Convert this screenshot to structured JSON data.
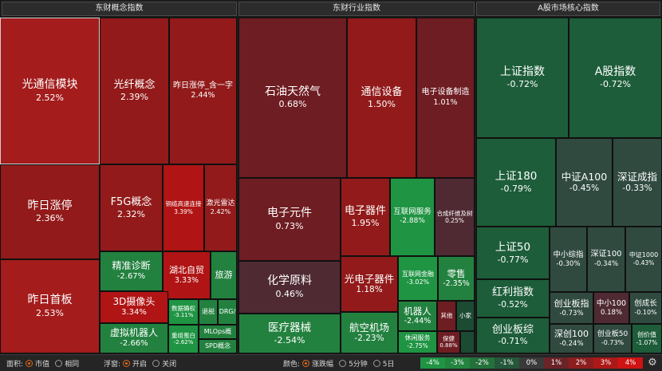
{
  "headers": {
    "concept": "东财概念指数",
    "industry": "东财行业指数",
    "core": "A股市场核心指数"
  },
  "tiles": {
    "c01": {
      "name": "光通信模块",
      "pct": "2.52%"
    },
    "c02": {
      "name": "光纤概念",
      "pct": "2.39%"
    },
    "c03": {
      "name": "昨日涨停_含一字",
      "pct": "2.44%"
    },
    "c04": {
      "name": "昨日涨停",
      "pct": "2.36%"
    },
    "c05": {
      "name": "F5G概念",
      "pct": "2.32%"
    },
    "c06": {
      "name": "铜缆高速连接",
      "pct": "3.39%"
    },
    "c07": {
      "name": "激光雷达",
      "pct": "2.42%"
    },
    "c08": {
      "name": "昨日首板",
      "pct": "2.53%"
    },
    "c09": {
      "name": "精准诊断",
      "pct": "-2.67%"
    },
    "c10": {
      "name": "湖北自贸",
      "pct": "3.33%"
    },
    "c11": {
      "name": "旅游",
      "pct": ""
    },
    "c12": {
      "name": "3D摄像头",
      "pct": "3.34%"
    },
    "c13": {
      "name": "数据确权",
      "pct": "-3.11%"
    },
    "c14": {
      "name": "退税",
      "pct": ""
    },
    "c15": {
      "name": "DRG/",
      "pct": ""
    },
    "c16": {
      "name": "虚拟机器人",
      "pct": "-2.66%"
    },
    "c17": {
      "name": "重组蛋白",
      "pct": "-2.62%"
    },
    "c18": {
      "name": "MLOps概",
      "pct": ""
    },
    "c19": {
      "name": "SPD概念",
      "pct": ""
    },
    "i01": {
      "name": "石油天然气",
      "pct": "0.68%"
    },
    "i02": {
      "name": "通信设备",
      "pct": "1.50%"
    },
    "i03": {
      "name": "电子设备制造",
      "pct": "1.01%"
    },
    "i04": {
      "name": "电子元件",
      "pct": "0.73%"
    },
    "i05": {
      "name": "电子器件",
      "pct": "1.95%"
    },
    "i06": {
      "name": "互联网服务",
      "pct": "-2.88%"
    },
    "i07": {
      "name": "合成纤维及树",
      "pct": "0.25%"
    },
    "i08": {
      "name": "化学原料",
      "pct": "0.46%"
    },
    "i09": {
      "name": "光电子器件",
      "pct": "1.18%"
    },
    "i10": {
      "name": "互联网金融",
      "pct": "-3.02%"
    },
    "i11": {
      "name": "零售",
      "pct": "-2.35%"
    },
    "i12": {
      "name": "机器人",
      "pct": "-2.44%"
    },
    "i13": {
      "name": "其他",
      "pct": ""
    },
    "i14": {
      "name": "小家",
      "pct": ""
    },
    "i15": {
      "name": "医疗器械",
      "pct": "-2.54%"
    },
    "i16": {
      "name": "航空机场",
      "pct": "-2.23%"
    },
    "i17": {
      "name": "休闲服务",
      "pct": "-2.75%"
    },
    "i18": {
      "name": "保健",
      "pct": "0.88%"
    },
    "m01": {
      "name": "上证指数",
      "pct": "-0.72%"
    },
    "m02": {
      "name": "A股指数",
      "pct": "-0.72%"
    },
    "m03": {
      "name": "上证180",
      "pct": "-0.79%"
    },
    "m04": {
      "name": "中证A100",
      "pct": "-0.45%"
    },
    "m05": {
      "name": "深证成指",
      "pct": "-0.33%"
    },
    "m06": {
      "name": "上证50",
      "pct": "-0.77%"
    },
    "m07": {
      "name": "中小综指",
      "pct": "-0.30%"
    },
    "m08": {
      "name": "深证100",
      "pct": "-0.34%"
    },
    "m09": {
      "name": "中证1000",
      "pct": "-0.43%"
    },
    "m10": {
      "name": "红利指数",
      "pct": "-0.52%"
    },
    "m11": {
      "name": "创业板指",
      "pct": "-0.73%"
    },
    "m12": {
      "name": "中小100",
      "pct": "0.18%"
    },
    "m13": {
      "name": "创成长",
      "pct": "-0.10%"
    },
    "m14": {
      "name": "创业板综",
      "pct": "-0.71%"
    },
    "m15": {
      "name": "深创100",
      "pct": "-0.24%"
    },
    "m16": {
      "name": "创业板50",
      "pct": "-0.73%"
    },
    "m17": {
      "name": "创价值",
      "pct": "-1.07%"
    }
  },
  "bottom": {
    "area_label": "面积:",
    "area_opt1": "市值",
    "area_opt2": "相同",
    "float_label": "浮窗:",
    "float_opt1": "开启",
    "float_opt2": "关闭",
    "color_label": "颜色:",
    "color_opt1": "涨跌幅",
    "color_opt2": "5分钟",
    "color_opt3": "5日",
    "area_selected": "市值",
    "float_selected": "开启",
    "color_selected": "涨跌幅"
  },
  "scale": [
    {
      "label": "-4%",
      "color": "#1f9443"
    },
    {
      "label": "-3%",
      "color": "#23843f"
    },
    {
      "label": "-2%",
      "color": "#24703a"
    },
    {
      "label": "-1%",
      "color": "#25573a"
    },
    {
      "label": "0%",
      "color": "#3a3a3a"
    },
    {
      "label": "1%",
      "color": "#6a2327"
    },
    {
      "label": "2%",
      "color": "#8c1d1f"
    },
    {
      "label": "3%",
      "color": "#ad1818"
    },
    {
      "label": "4%",
      "color": "#cf1313"
    }
  ],
  "icons": {
    "settings": "gear-icon"
  }
}
